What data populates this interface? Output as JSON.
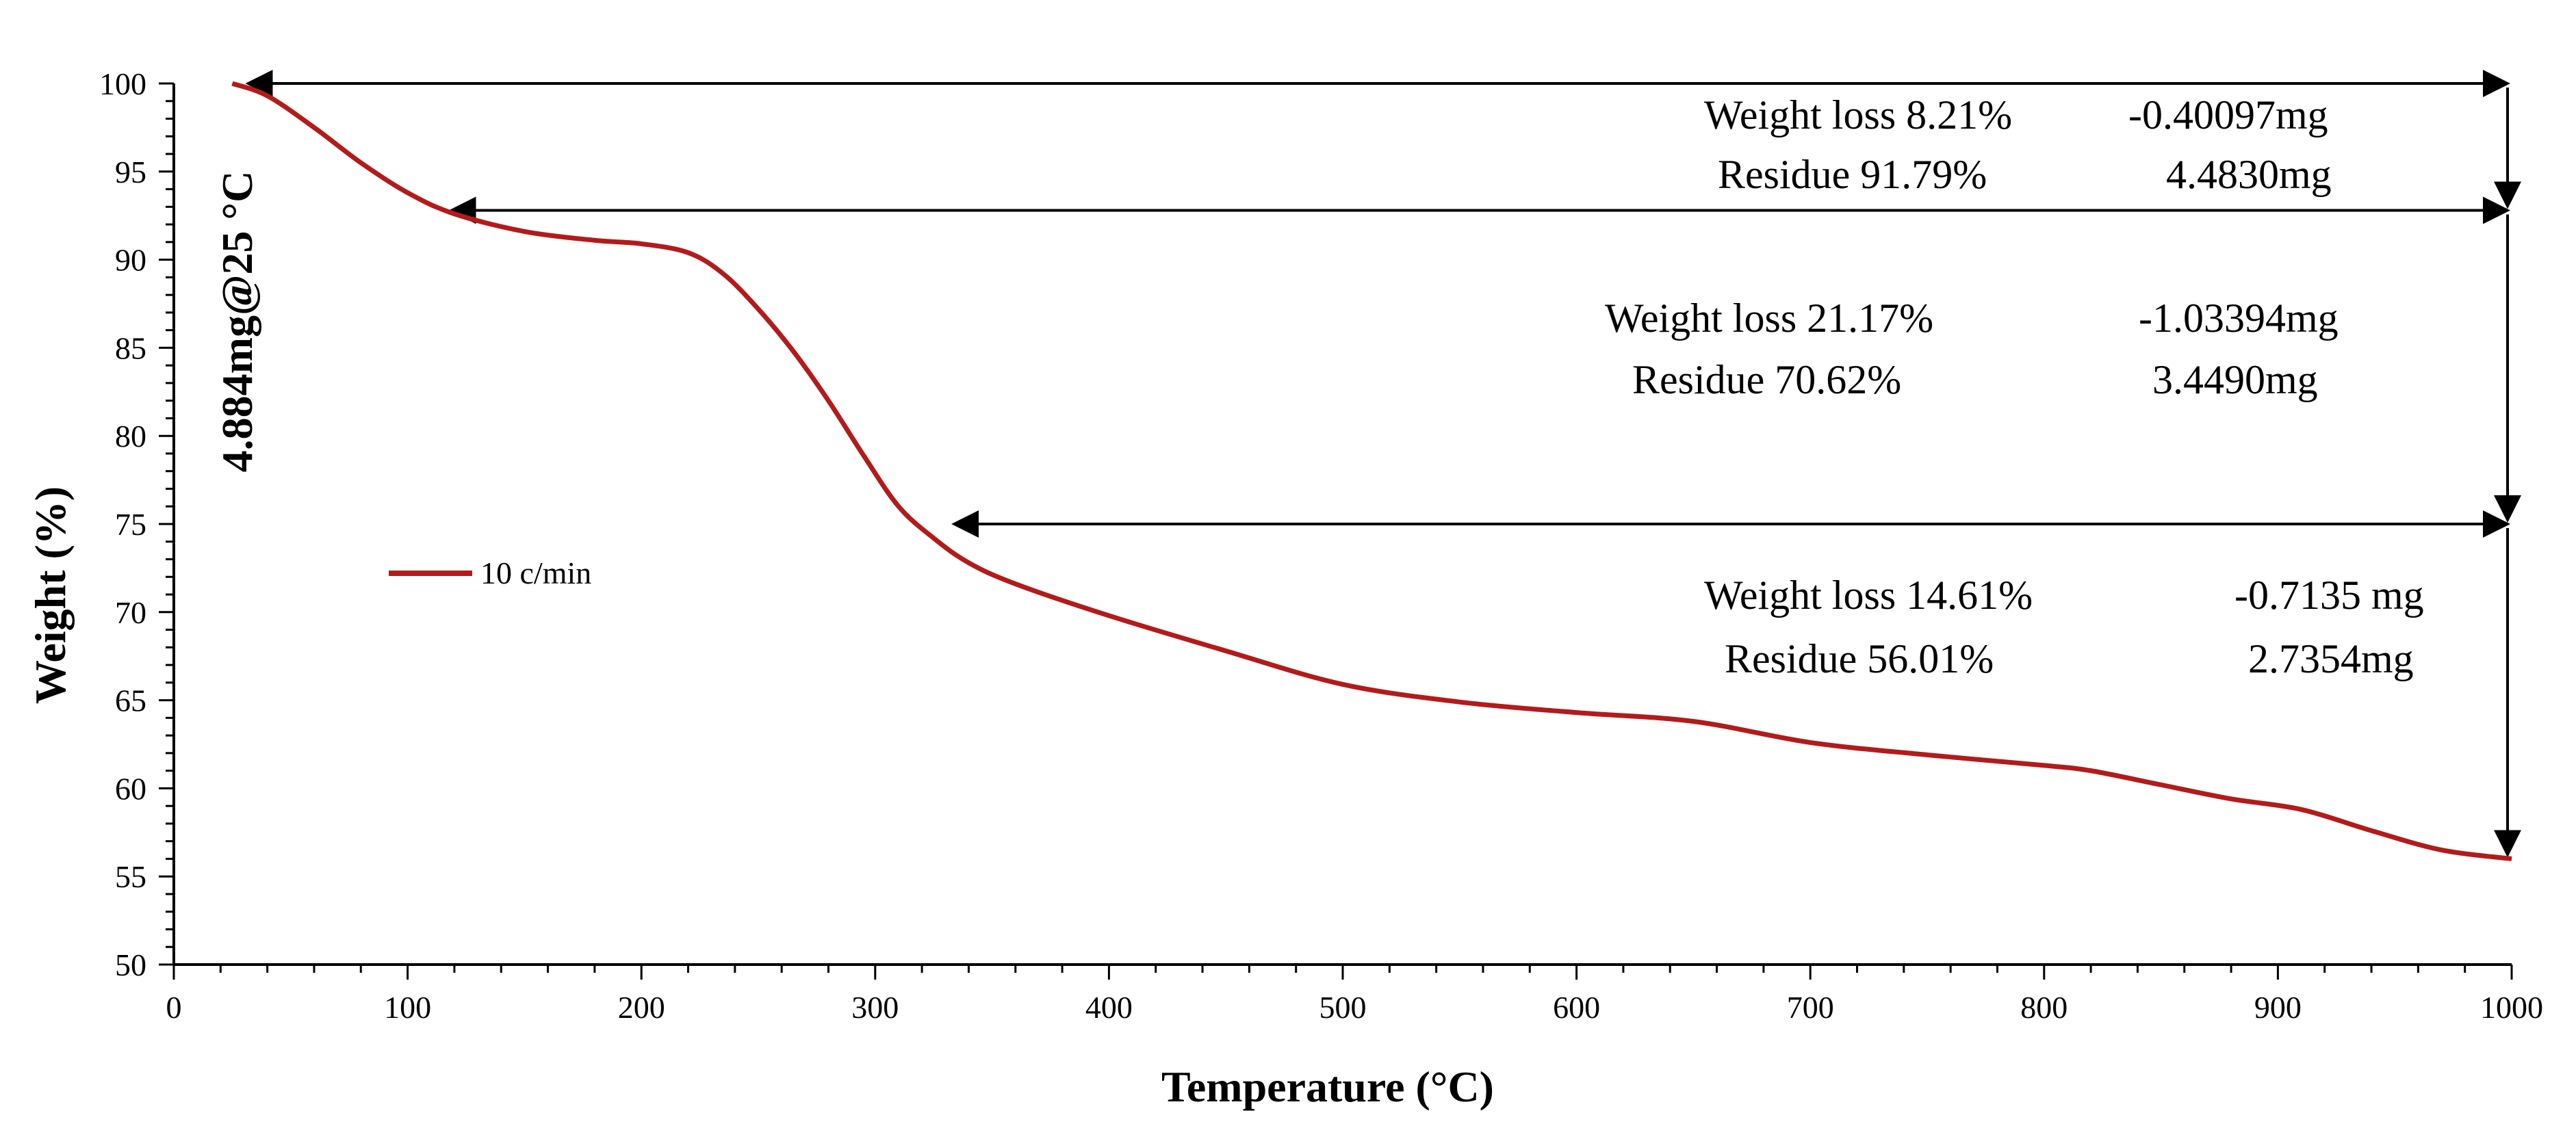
{
  "chart_data": {
    "type": "line",
    "xlabel": "Temperature (°C)",
    "ylabel": "Weight (%)",
    "xlim": [
      0,
      1000
    ],
    "ylim": [
      50,
      100
    ],
    "xticks": [
      "0",
      "100",
      "200",
      "300",
      "400",
      "500",
      "600",
      "700",
      "800",
      "900",
      "1000"
    ],
    "yticks": [
      "50",
      "55",
      "60",
      "65",
      "70",
      "75",
      "80",
      "85",
      "90",
      "95",
      "100"
    ],
    "grid": false,
    "legend_position": "left-middle",
    "series": [
      {
        "name": "10 c/min",
        "color": "#b31b1b",
        "x": [
          25,
          40,
          60,
          80,
          100,
          120,
          150,
          180,
          200,
          220,
          235,
          250,
          265,
          280,
          295,
          310,
          325,
          340,
          360,
          400,
          450,
          500,
          550,
          600,
          650,
          700,
          750,
          800,
          820,
          850,
          880,
          910,
          940,
          970,
          1000
        ],
        "y": [
          100,
          99.3,
          97.5,
          95.5,
          93.8,
          92.6,
          91.6,
          91.1,
          90.9,
          90.4,
          89.2,
          87.2,
          84.8,
          82.0,
          78.9,
          76.0,
          74.2,
          72.8,
          71.6,
          69.8,
          67.8,
          65.9,
          64.9,
          64.3,
          63.8,
          62.6,
          61.9,
          61.3,
          61.0,
          60.2,
          59.4,
          58.8,
          57.6,
          56.5,
          56.0
        ]
      }
    ],
    "side_label": "4.884mg@25 °C",
    "annotations": [
      {
        "line1_left": "Weight loss  8.21%",
        "line1_right": "-0.40097mg",
        "line2_left": "Residue 91.79%",
        "line2_right": "4.4830mg"
      },
      {
        "line1_left": "Weight loss  21.17%",
        "line1_right": "-1.03394mg",
        "line2_left": "Residue 70.62%",
        "line2_right": "3.4490mg"
      },
      {
        "line1_left": "Weight loss  14.61%",
        "line1_right": "-0.7135 mg",
        "line2_left": "Residue 56.01%",
        "line2_right": "2.7354mg"
      }
    ],
    "range_arrows": [
      {
        "x_start": 30,
        "y": 100
      },
      {
        "x_start": 117,
        "y": 92.8
      },
      {
        "x_start": 332,
        "y": 75.0
      }
    ],
    "step_arrows": [
      {
        "y_from": 100,
        "y_to": 92.8
      },
      {
        "y_from": 92.8,
        "y_to": 75.0
      },
      {
        "y_from": 75.0,
        "y_to": 56.0
      }
    ]
  }
}
